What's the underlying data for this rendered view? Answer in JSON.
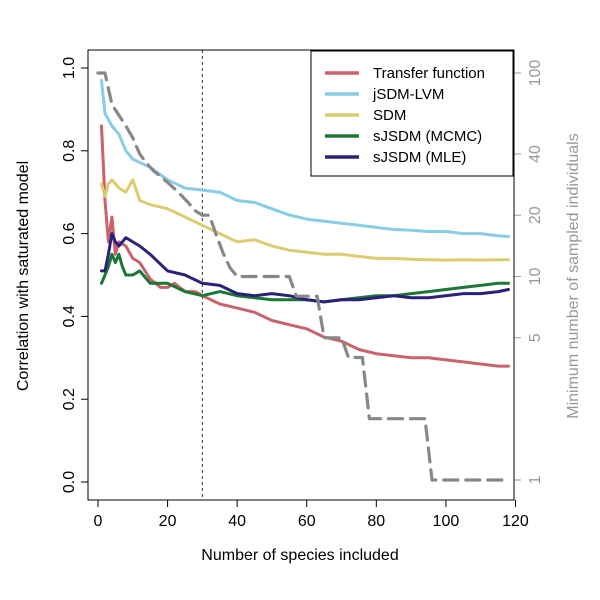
{
  "chart_data": {
    "type": "line",
    "title": "",
    "xlabel": "Number of species included",
    "ylabel": "Correlation with saturated model",
    "y2label": "Minimum number of sampled individuals",
    "xlim": [
      0,
      120
    ],
    "ylim": [
      0,
      1.0
    ],
    "y2_scale": "log",
    "y2lim": [
      1,
      100
    ],
    "xticks": [
      "0",
      "20",
      "40",
      "60",
      "80",
      "100",
      "120"
    ],
    "yticks": [
      "0.0",
      "0.2",
      "0.4",
      "0.6",
      "0.8",
      "1.0"
    ],
    "y2ticks": [
      "1",
      "5",
      "10",
      "20",
      "40",
      "100"
    ],
    "vline_x": 30,
    "legend_position": "top-right",
    "series": [
      {
        "name": "Transfer function",
        "color": "#c8626b",
        "x": [
          1,
          2,
          3,
          4,
          5,
          6,
          8,
          10,
          12,
          15,
          18,
          20,
          22,
          25,
          28,
          30,
          35,
          40,
          45,
          50,
          55,
          60,
          65,
          70,
          75,
          80,
          85,
          90,
          95,
          100,
          105,
          110,
          115,
          118
        ],
        "y": [
          0.86,
          0.68,
          0.58,
          0.64,
          0.55,
          0.58,
          0.57,
          0.54,
          0.53,
          0.49,
          0.47,
          0.47,
          0.48,
          0.46,
          0.46,
          0.45,
          0.43,
          0.42,
          0.41,
          0.39,
          0.38,
          0.37,
          0.35,
          0.34,
          0.32,
          0.31,
          0.305,
          0.3,
          0.3,
          0.295,
          0.29,
          0.285,
          0.28,
          0.28
        ]
      },
      {
        "name": "jSDM-LVM",
        "color": "#87cde6",
        "x": [
          1,
          2,
          4,
          6,
          8,
          10,
          15,
          20,
          25,
          30,
          35,
          40,
          45,
          50,
          55,
          60,
          65,
          70,
          75,
          80,
          85,
          90,
          95,
          100,
          105,
          110,
          115,
          118
        ],
        "y": [
          0.97,
          0.89,
          0.86,
          0.84,
          0.8,
          0.78,
          0.76,
          0.73,
          0.71,
          0.705,
          0.7,
          0.68,
          0.675,
          0.66,
          0.645,
          0.635,
          0.63,
          0.625,
          0.62,
          0.615,
          0.61,
          0.608,
          0.605,
          0.605,
          0.6,
          0.6,
          0.595,
          0.593
        ]
      },
      {
        "name": "SDM",
        "color": "#ddcb72",
        "x": [
          1,
          2,
          3,
          4,
          5,
          6,
          8,
          10,
          12,
          15,
          20,
          25,
          30,
          35,
          40,
          45,
          50,
          55,
          60,
          65,
          70,
          75,
          80,
          85,
          90,
          95,
          100,
          105,
          110,
          115,
          118
        ],
        "y": [
          0.72,
          0.69,
          0.72,
          0.73,
          0.72,
          0.71,
          0.7,
          0.73,
          0.68,
          0.67,
          0.66,
          0.64,
          0.62,
          0.6,
          0.58,
          0.585,
          0.57,
          0.56,
          0.555,
          0.55,
          0.55,
          0.545,
          0.54,
          0.54,
          0.538,
          0.537,
          0.536,
          0.537,
          0.536,
          0.537,
          0.537
        ]
      },
      {
        "name": "sJSDM (MCMC)",
        "color": "#1c7635",
        "x": [
          1,
          2,
          3,
          4,
          5,
          6,
          7,
          8,
          10,
          12,
          15,
          20,
          25,
          30,
          35,
          40,
          45,
          50,
          55,
          60,
          65,
          70,
          75,
          80,
          85,
          90,
          95,
          100,
          105,
          110,
          115,
          118
        ],
        "y": [
          0.48,
          0.5,
          0.52,
          0.55,
          0.53,
          0.55,
          0.52,
          0.5,
          0.5,
          0.51,
          0.48,
          0.48,
          0.46,
          0.45,
          0.46,
          0.45,
          0.445,
          0.44,
          0.44,
          0.44,
          0.435,
          0.44,
          0.445,
          0.45,
          0.45,
          0.455,
          0.46,
          0.465,
          0.47,
          0.475,
          0.48,
          0.48
        ]
      },
      {
        "name": "sJSDM (MLE)",
        "color": "#2a2279",
        "x": [
          1,
          2,
          3,
          4,
          5,
          6,
          8,
          10,
          12,
          15,
          20,
          25,
          30,
          35,
          40,
          45,
          50,
          55,
          60,
          65,
          70,
          75,
          80,
          85,
          90,
          95,
          100,
          105,
          110,
          115,
          118
        ],
        "y": [
          0.51,
          0.51,
          0.55,
          0.6,
          0.58,
          0.57,
          0.59,
          0.58,
          0.57,
          0.55,
          0.51,
          0.5,
          0.48,
          0.475,
          0.455,
          0.45,
          0.455,
          0.45,
          0.44,
          0.435,
          0.44,
          0.44,
          0.445,
          0.45,
          0.445,
          0.445,
          0.45,
          0.455,
          0.455,
          0.46,
          0.465
        ]
      },
      {
        "name": "",
        "color": "#888888",
        "dashed": true,
        "axis": "right",
        "x": [
          0,
          2,
          4,
          6,
          8,
          10,
          12,
          14,
          16,
          18,
          20,
          22,
          24,
          26,
          28,
          30,
          32,
          34,
          36,
          38,
          40,
          55,
          57,
          63,
          65,
          70,
          72,
          76,
          78,
          94,
          96,
          118
        ],
        "y": [
          100,
          100,
          70,
          62,
          55,
          48,
          40,
          36,
          33,
          31,
          29,
          27,
          25,
          23,
          21,
          20,
          20,
          16,
          13,
          11,
          10,
          10,
          8,
          8,
          5,
          5,
          4,
          4,
          2,
          2,
          1,
          1
        ]
      }
    ]
  }
}
